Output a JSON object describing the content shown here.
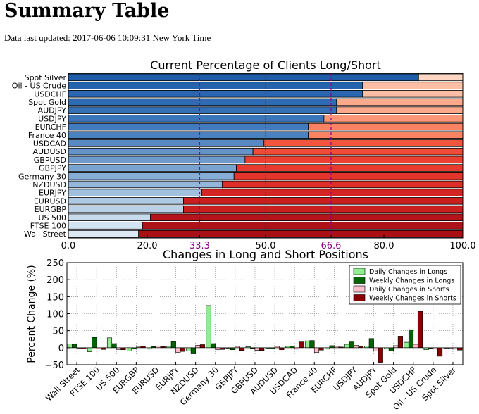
{
  "page": {
    "title": "Summary Table",
    "updated": "Data last updated: 2017-06-06 10:09:31 New York Time"
  },
  "chart_data": [
    {
      "type": "bar",
      "orientation": "horizontal",
      "stacked": true,
      "title": "Current Percentage of Clients Long/Short",
      "categories": [
        "Spot Silver",
        "Oil - US Crude",
        "USDCHF",
        "Spot Gold",
        "AUDJPY",
        "USDJPY",
        "EURCHF",
        "France 40",
        "USDCAD",
        "AUDUSD",
        "GBPUSD",
        "GBPJPY",
        "Germany 30",
        "NZDUSD",
        "EURJPY",
        "EURUSD",
        "EURGBP",
        "US 500",
        "FTSE 100",
        "Wall Street"
      ],
      "series": [
        {
          "values": [
            88.8,
            74.6,
            74.6,
            68.0,
            68.0,
            64.8,
            60.8,
            60.8,
            49.6,
            46.8,
            44.8,
            42.6,
            42.0,
            39.0,
            33.8,
            29.2,
            29.2,
            20.8,
            18.8,
            17.8
          ],
          "colors": [
            "#1f5da8",
            "#2563ad",
            "#2a67b0",
            "#2f6bb3",
            "#3470b6",
            "#3a75b9",
            "#427bbd",
            "#4a82c1",
            "#5689c4",
            "#6393c9",
            "#6f9bcc",
            "#79a4d0",
            "#86add5",
            "#93b6da",
            "#a0c0de",
            "#adc9e3",
            "#bad2e8",
            "#c7dbec",
            "#d2e3f1",
            "#dce9f5"
          ]
        },
        {
          "values": [
            11.2,
            25.4,
            25.4,
            32.0,
            32.0,
            35.2,
            39.2,
            39.2,
            50.4,
            53.2,
            55.2,
            57.4,
            58.0,
            61.0,
            66.2,
            70.8,
            70.8,
            79.2,
            81.2,
            82.2
          ],
          "colors": [
            "#fdd7c4",
            "#fcbea5",
            "#fcbea5",
            "#fca98c",
            "#fca98c",
            "#fc9676",
            "#fb8262",
            "#fb8262",
            "#f2553e",
            "#ef4b37",
            "#ec4132",
            "#e63a2e",
            "#e2352b",
            "#dd2e27",
            "#d52522",
            "#cb1e1e",
            "#cb1e1e",
            "#b5141a",
            "#ae1218",
            "#a91016"
          ]
        }
      ],
      "xlim": [
        0,
        100
      ],
      "xticks": [
        "0.0",
        "20.0",
        "33.3",
        "50.0",
        "66.6",
        "80.0",
        "100.0"
      ],
      "reference_lines": [
        33.3,
        66.6
      ],
      "reference_color": "#8b008b"
    },
    {
      "type": "bar",
      "title": "Changes in Long and Short Positions",
      "ylabel": "Percent Change (%)",
      "ylim": [
        -50,
        250
      ],
      "yticks": [
        "250",
        "200",
        "150",
        "100",
        "50",
        "0",
        "−50"
      ],
      "grid": true,
      "legend_position": "top-right",
      "categories": [
        "Wall Street",
        "FTSE 100",
        "US 500",
        "EURGBP",
        "EURUSD",
        "EURJPY",
        "NZDUSD",
        "Germany 30",
        "GBPJPY",
        "GBPUSD",
        "AUDUSD",
        "USDCAD",
        "France 40",
        "EURCHF",
        "USDJPY",
        "AUDJPY",
        "Spot Gold",
        "USDCHF",
        "Oil - US Crude",
        "Spot Silver"
      ],
      "series": [
        {
          "name": "Daily Changes in Longs",
          "color": "#90ee90",
          "values": [
            11,
            -12,
            29,
            -10,
            -4,
            4,
            -10,
            124,
            -2,
            3,
            -2,
            4,
            20,
            -4,
            10,
            5,
            -4,
            16,
            -6,
            -2
          ]
        },
        {
          "name": "Weekly Changes in Longs",
          "color": "#006400",
          "values": [
            10,
            30,
            12,
            -4,
            3,
            18,
            -18,
            12,
            -6,
            -2,
            -3,
            5,
            21,
            6,
            17,
            27,
            -9,
            53,
            -2,
            -1
          ]
        },
        {
          "name": "Daily Changes in Shorts",
          "color": "#ffc0cb",
          "values": [
            -2,
            -3,
            -5,
            2,
            5,
            -14,
            7,
            -6,
            4,
            -8,
            4,
            -4,
            -14,
            4,
            7,
            -10,
            6,
            10,
            -4,
            -4
          ]
        },
        {
          "name": "Weekly Changes in Shorts",
          "color": "#8b0000",
          "values": [
            -3,
            -5,
            -6,
            4,
            3,
            -11,
            9,
            -5,
            -8,
            -8,
            -6,
            17,
            -7,
            2,
            3,
            -43,
            34,
            107,
            -25,
            -7
          ]
        }
      ]
    }
  ]
}
